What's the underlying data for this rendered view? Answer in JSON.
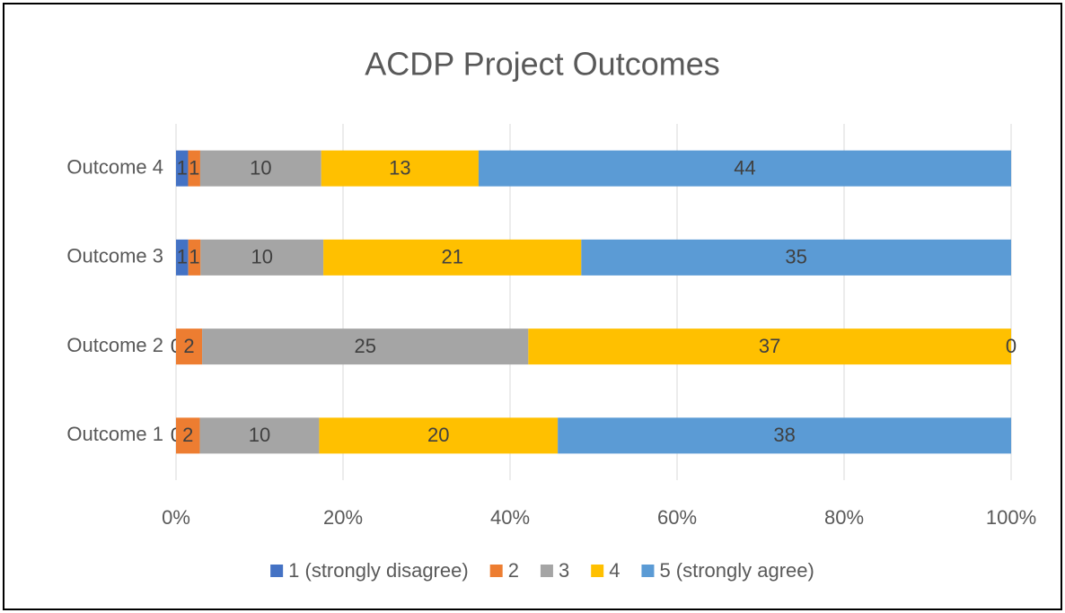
{
  "chart_data": {
    "type": "bar",
    "orientation": "horizontal",
    "stacked": "percent",
    "title": "ACDP Project Outcomes",
    "categories": [
      "Outcome 1",
      "Outcome 2",
      "Outcome 3",
      "Outcome 4"
    ],
    "series": [
      {
        "name": "1 (strongly disagree)",
        "color": "#4472c4",
        "values": [
          0,
          0,
          1,
          1
        ]
      },
      {
        "name": "2",
        "color": "#ed7d31",
        "values": [
          2,
          2,
          1,
          1
        ]
      },
      {
        "name": "3",
        "color": "#a5a5a5",
        "values": [
          10,
          25,
          10,
          10
        ]
      },
      {
        "name": "4",
        "color": "#ffc000",
        "values": [
          20,
          37,
          21,
          13
        ]
      },
      {
        "name": "5 (strongly agree)",
        "color": "#5b9bd5",
        "values": [
          38,
          0,
          35,
          44
        ]
      }
    ],
    "xlim": [
      0,
      100
    ],
    "xticks": [
      {
        "value": 0,
        "label": "0%"
      },
      {
        "value": 20,
        "label": "20%"
      },
      {
        "value": 40,
        "label": "40%"
      },
      {
        "value": 60,
        "label": "60%"
      },
      {
        "value": 80,
        "label": "80%"
      },
      {
        "value": 100,
        "label": "100%"
      }
    ],
    "grid": true,
    "legend": "bottom",
    "data_labels": true
  }
}
